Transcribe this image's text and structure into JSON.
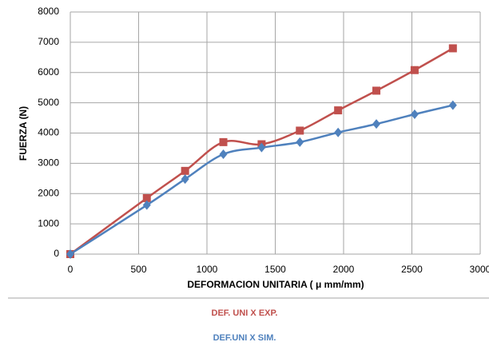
{
  "chart_data": {
    "type": "line",
    "x_label": "DEFORMACION UNITARIA ( μ mm/mm)",
    "y_label": "FUERZA (N)",
    "x": [
      0,
      560,
      840,
      1120,
      1400,
      1680,
      1960,
      2240,
      2520,
      2800
    ],
    "series": [
      {
        "name": "DEF. UNI X  EXP.",
        "color": "#c0504d",
        "marker": "square",
        "values": [
          0,
          1850,
          2750,
          3700,
          3630,
          4080,
          4750,
          5400,
          6080,
          6800
        ]
      },
      {
        "name": "DEF.UNI X SIM.",
        "color": "#4f81bd",
        "marker": "diamond",
        "values": [
          0,
          1620,
          2480,
          3300,
          3520,
          3700,
          4020,
          4300,
          4620,
          4920
        ]
      }
    ],
    "xlim": [
      0,
      3000
    ],
    "xticks": [
      0,
      500,
      1000,
      1500,
      2000,
      2500,
      3000
    ],
    "ylim": [
      0,
      8000
    ],
    "yticks": [
      0,
      1000,
      2000,
      3000,
      4000,
      5000,
      6000,
      7000,
      8000
    ],
    "grid": true,
    "legend": "bottom"
  }
}
